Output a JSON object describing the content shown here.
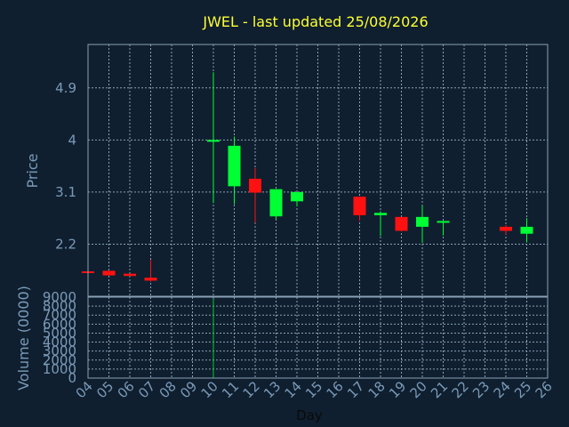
{
  "chart_data": {
    "type": "candlestick",
    "title": "JWEL - last updated 25/08/2026",
    "xlabel": "Day",
    "price_panel": {
      "ylabel": "Price",
      "yticks": [
        2.2,
        3.1,
        4,
        4.9
      ],
      "ytick_labels": [
        "2.2",
        "3.1",
        "4",
        "4.9"
      ],
      "ylim": [
        1.3,
        5.65
      ]
    },
    "volume_panel": {
      "ylabel": "Volume (0000)",
      "yticks": [
        0,
        1000,
        2000,
        3000,
        4000,
        5000,
        6000,
        7000,
        8000,
        9000
      ],
      "ytick_labels": [
        "0",
        "1000",
        "2000",
        "3000",
        "4000",
        "5000",
        "6000",
        "7000",
        "8000",
        "9000"
      ],
      "ylim": [
        0,
        9000
      ]
    },
    "x_ticks": [
      "04",
      "05",
      "06",
      "07",
      "08",
      "09",
      "10",
      "11",
      "12",
      "13",
      "14",
      "15",
      "16",
      "17",
      "18",
      "19",
      "20",
      "21",
      "22",
      "23",
      "24",
      "25",
      "26"
    ],
    "grid": true,
    "colors": {
      "background": "#0f1f2f",
      "grid": "#8aa0b5",
      "axis": "#8aa0b5",
      "title": "#ffff33",
      "label": "#7a9ab8",
      "up": "#00ff33",
      "down": "#ff1111",
      "volume": "#00cc22"
    },
    "candles": [
      {
        "day": "04",
        "open": 1.73,
        "high": 1.73,
        "low": 1.72,
        "close": 1.72
      },
      {
        "day": "05",
        "open": 1.74,
        "high": 1.74,
        "low": 1.66,
        "close": 1.66
      },
      {
        "day": "06",
        "open": 1.69,
        "high": 1.69,
        "low": 1.65,
        "close": 1.65
      },
      {
        "day": "07",
        "open": 1.62,
        "high": 1.93,
        "low": 1.55,
        "close": 1.57
      },
      {
        "day": "10",
        "open": 3.97,
        "high": 5.17,
        "low": 2.91,
        "close": 4.0
      },
      {
        "day": "11",
        "open": 3.2,
        "high": 4.06,
        "low": 2.89,
        "close": 3.9
      },
      {
        "day": "12",
        "open": 3.33,
        "high": 3.52,
        "low": 2.57,
        "close": 3.09
      },
      {
        "day": "13",
        "open": 2.68,
        "high": 3.15,
        "low": 2.62,
        "close": 3.15
      },
      {
        "day": "14",
        "open": 2.94,
        "high": 3.1,
        "low": 2.85,
        "close": 3.1
      },
      {
        "day": "17",
        "open": 3.02,
        "high": 3.02,
        "low": 2.6,
        "close": 2.7
      },
      {
        "day": "18",
        "open": 2.7,
        "high": 2.77,
        "low": 2.34,
        "close": 2.74
      },
      {
        "day": "19",
        "open": 2.67,
        "high": 2.67,
        "low": 2.42,
        "close": 2.43
      },
      {
        "day": "20",
        "open": 2.5,
        "high": 2.87,
        "low": 2.22,
        "close": 2.67
      },
      {
        "day": "21",
        "open": 2.58,
        "high": 2.6,
        "low": 2.35,
        "close": 2.6
      },
      {
        "day": "24",
        "open": 2.5,
        "high": 2.53,
        "low": 2.37,
        "close": 2.43
      },
      {
        "day": "25",
        "open": 2.38,
        "high": 2.65,
        "low": 2.23,
        "close": 2.5
      }
    ],
    "volume": [
      {
        "day": "10",
        "value": 8800
      }
    ]
  }
}
